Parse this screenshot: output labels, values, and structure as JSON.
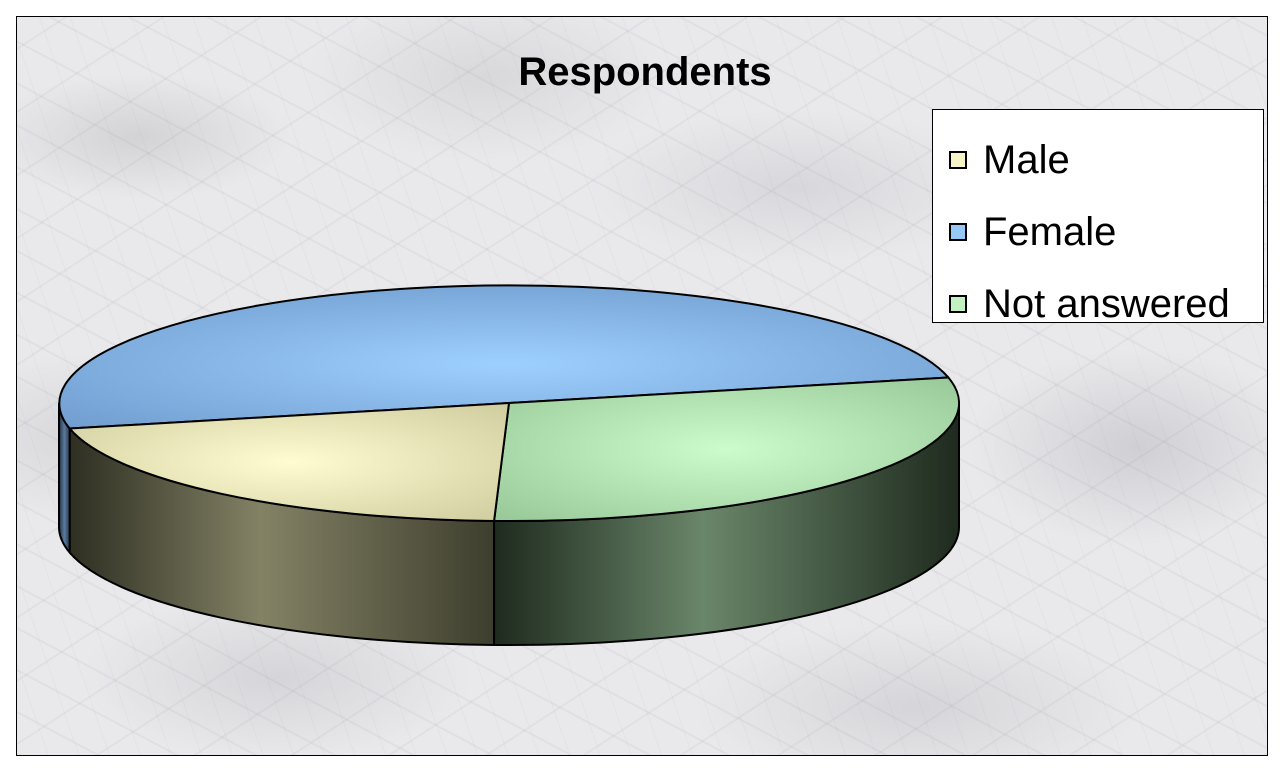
{
  "chart_data": {
    "type": "pie",
    "style": "3d",
    "title": "Respondents",
    "legend_position": "right",
    "slices": [
      {
        "label": "Male",
        "value": 21,
        "color": "#F7F5C8",
        "side_color": "#6E6E54"
      },
      {
        "label": "Female",
        "value": 50,
        "color": "#96C8F7",
        "side_color": "#3E5470"
      },
      {
        "label": "Not answered",
        "value": 29,
        "color": "#C2F2C2",
        "side_color": "#4C664C"
      }
    ]
  }
}
